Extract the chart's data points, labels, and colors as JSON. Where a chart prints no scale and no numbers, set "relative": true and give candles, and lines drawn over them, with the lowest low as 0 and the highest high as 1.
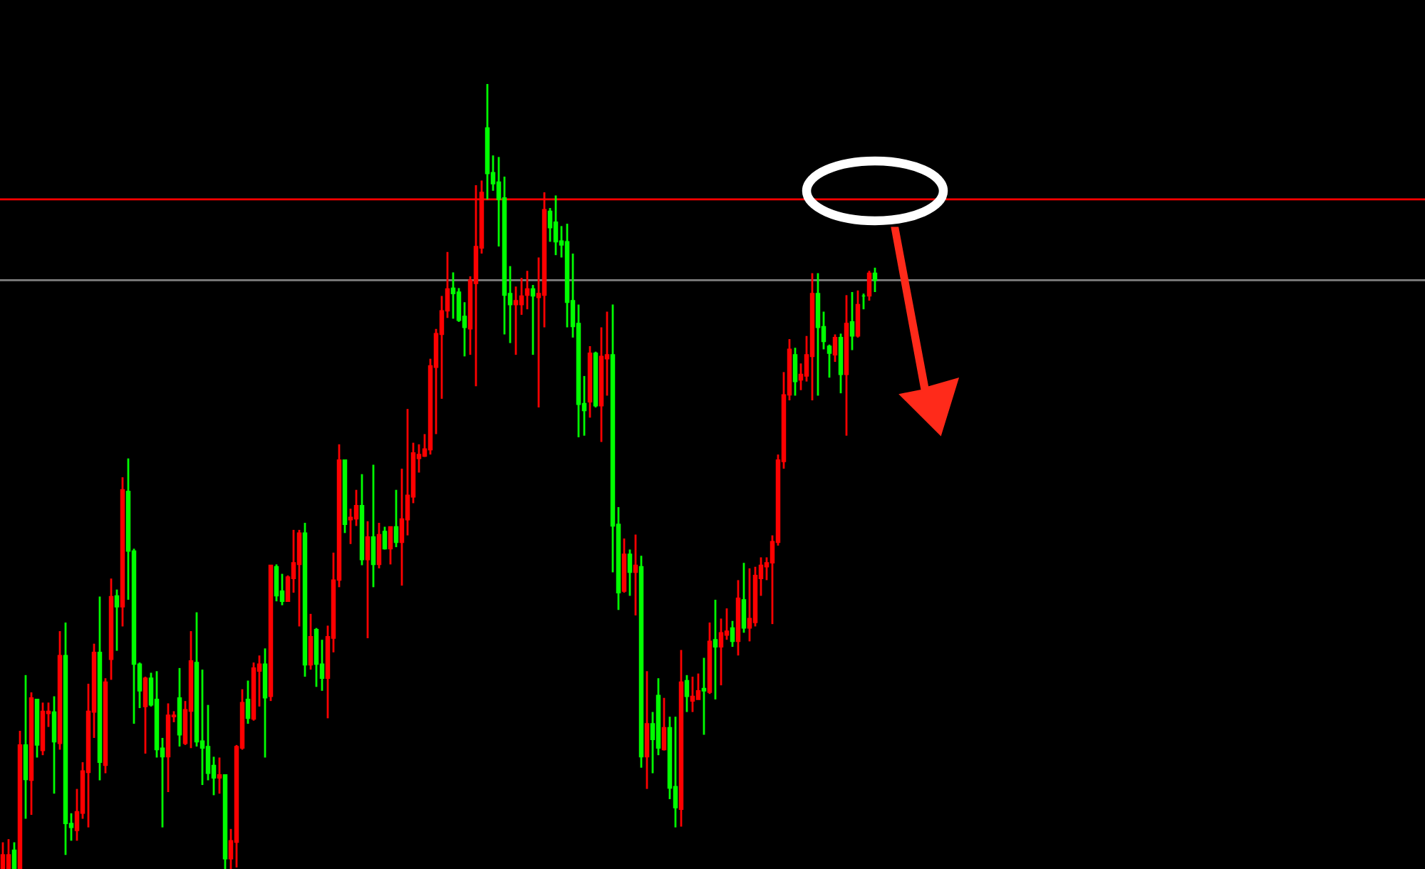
{
  "chart_data": {
    "type": "candlestick",
    "relative": true,
    "categories": [
      null,
      null,
      null,
      null,
      null,
      null,
      null,
      null,
      null,
      null,
      null,
      null,
      null,
      null,
      null,
      null,
      null,
      null,
      null,
      null,
      null,
      null,
      null,
      null,
      null,
      null,
      null,
      null,
      null,
      null,
      null,
      null,
      null,
      null,
      null,
      null,
      null,
      null,
      null,
      null,
      null,
      null,
      null,
      null,
      null,
      null,
      null,
      null,
      null,
      null,
      null,
      null,
      null,
      null,
      null,
      null,
      null,
      null,
      null,
      null,
      null,
      null,
      null,
      null,
      null,
      null,
      null,
      null,
      null,
      null,
      null,
      null,
      null,
      null,
      null,
      null,
      null,
      null,
      null,
      null,
      null,
      null,
      null,
      null,
      null,
      null,
      null,
      null,
      null,
      null,
      null,
      null,
      null,
      null,
      null,
      null,
      null,
      null,
      null,
      null,
      null,
      null,
      null,
      null,
      null,
      null,
      null,
      null,
      null,
      null,
      null,
      null,
      null,
      null,
      null,
      null,
      null,
      null,
      null,
      null,
      null,
      null,
      null,
      null,
      null,
      null,
      null,
      null,
      null,
      null,
      null,
      null,
      null,
      null,
      null,
      null,
      null,
      null,
      null,
      null,
      null,
      null,
      null,
      null,
      null,
      null,
      null,
      null,
      null,
      null,
      null,
      null,
      null,
      null
    ],
    "ohlc": [
      [
        0,
        0.034,
        0,
        0.018
      ],
      [
        0,
        0.038,
        0,
        0.018
      ],
      [
        0.024,
        0.034,
        0,
        0
      ],
      [
        0,
        0.176,
        0,
        0.158
      ],
      [
        0.158,
        0.247,
        0.064,
        0.114
      ],
      [
        0.113,
        0.225,
        0.069,
        0.218
      ],
      [
        0.216,
        0.216,
        0.142,
        0.158
      ],
      [
        0.151,
        0.212,
        0.145,
        0.201
      ],
      [
        0.198,
        0.212,
        0.181,
        0.201
      ],
      [
        0.2,
        0.22,
        0.096,
        0.162
      ],
      [
        0.16,
        0.303,
        0.152,
        0.272
      ],
      [
        0.272,
        0.314,
        0.018,
        0.058
      ],
      [
        0.058,
        0.071,
        0.036,
        0.053
      ],
      [
        0.049,
        0.102,
        0.036,
        0.073
      ],
      [
        0.071,
        0.136,
        0.064,
        0.125
      ],
      [
        0.123,
        0.236,
        0.053,
        0.201
      ],
      [
        0.2,
        0.287,
        0.167,
        0.276
      ],
      [
        0.276,
        0.347,
        0.113,
        0.136
      ],
      [
        0.132,
        0.243,
        0.122,
        0.238
      ],
      [
        0.267,
        0.37,
        0.241,
        0.347
      ],
      [
        0.348,
        0.356,
        0.278,
        0.334
      ],
      [
        0.334,
        0.499,
        0.309,
        0.483
      ],
      [
        0.481,
        0.523,
        0.343,
        0.405
      ],
      [
        0.405,
        0.408,
        0.185,
        0.261
      ],
      [
        0.261,
        0.263,
        0.205,
        0.227
      ],
      [
        0.207,
        0.245,
        0.147,
        0.243
      ],
      [
        0.243,
        0.25,
        0.207,
        0.209
      ],
      [
        0.216,
        0.252,
        0.142,
        0.152
      ],
      [
        0.154,
        0.167,
        0.053,
        0.143
      ],
      [
        0.143,
        0.211,
        0.098,
        0.196
      ],
      [
        0.194,
        0.201,
        0.187,
        0.196
      ],
      [
        0.218,
        0.256,
        0.156,
        0.171
      ],
      [
        0.16,
        0.214,
        0.158,
        0.203
      ],
      [
        0.201,
        0.303,
        0.154,
        0.265
      ],
      [
        0.263,
        0.327,
        0.156,
        0.162
      ],
      [
        0.163,
        0.254,
        0.107,
        0.154
      ],
      [
        0.156,
        0.209,
        0.113,
        0.122
      ],
      [
        0.132,
        0.143,
        0.094,
        0.116
      ],
      [
        0.116,
        0.142,
        0.096,
        0.12
      ],
      [
        0.12,
        0.12,
        0,
        0.013
      ],
      [
        0.013,
        0.051,
        0,
        0.036
      ],
      [
        0.034,
        0.158,
        0.002,
        0.156
      ],
      [
        0.154,
        0.229,
        0.152,
        0.212
      ],
      [
        0.216,
        0.24,
        0.185,
        0.192
      ],
      [
        0.191,
        0.263,
        0.189,
        0.256
      ],
      [
        0.252,
        0.272,
        0.207,
        0.261
      ],
      [
        0.261,
        0.281,
        0.142,
        0.218
      ],
      [
        0.22,
        0.387,
        0.214,
        0.387
      ],
      [
        0.385,
        0.388,
        0.341,
        0.348
      ],
      [
        0.354,
        0.376,
        0.336,
        0.341
      ],
      [
        0.341,
        0.374,
        0.341,
        0.372
      ],
      [
        0.37,
        0.432,
        0.352,
        0.39
      ],
      [
        0.388,
        0.432,
        0.309,
        0.428
      ],
      [
        0.428,
        0.441,
        0.245,
        0.26
      ],
      [
        0.26,
        0.325,
        0.254,
        0.296
      ],
      [
        0.305,
        0.307,
        0.232,
        0.261
      ],
      [
        0.261,
        0.292,
        0.227,
        0.243
      ],
      [
        0.243,
        0.31,
        0.192,
        0.296
      ],
      [
        0.294,
        0.403,
        0.276,
        0.368
      ],
      [
        0.368,
        0.541,
        0.359,
        0.521
      ],
      [
        0.521,
        0.521,
        0.428,
        0.439
      ],
      [
        0.445,
        0.459,
        0.414,
        0.448
      ],
      [
        0.446,
        0.483,
        0.437,
        0.463
      ],
      [
        0.463,
        0.503,
        0.387,
        0.394
      ],
      [
        0.394,
        0.443,
        0.294,
        0.423
      ],
      [
        0.423,
        0.515,
        0.359,
        0.388
      ],
      [
        0.388,
        0.441,
        0.383,
        0.426
      ],
      [
        0.43,
        0.436,
        0.407,
        0.408
      ],
      [
        0.408,
        0.436,
        0.388,
        0.436
      ],
      [
        0.436,
        0.483,
        0.41,
        0.416
      ],
      [
        0.416,
        0.51,
        0.361,
        0.446
      ],
      [
        0.445,
        0.586,
        0.425,
        0.476
      ],
      [
        0.474,
        0.543,
        0.466,
        0.53
      ],
      [
        0.523,
        0.541,
        0.505,
        0.528
      ],
      [
        0.526,
        0.554,
        0.525,
        0.535
      ],
      [
        0.534,
        0.65,
        0.528,
        0.641
      ],
      [
        0.639,
        0.688,
        0.554,
        0.682
      ],
      [
        0.681,
        0.73,
        0.599,
        0.711
      ],
      [
        0.711,
        0.786,
        0.702,
        0.739
      ],
      [
        0.74,
        0.76,
        0.701,
        0.733
      ],
      [
        0.735,
        0.74,
        0.697,
        0.699
      ],
      [
        0.704,
        0.722,
        0.653,
        0.69
      ],
      [
        0.688,
        0.755,
        0.655,
        0.75
      ],
      [
        0.746,
        0.871,
        0.615,
        0.793
      ],
      [
        0.791,
        0.877,
        0.784,
        0.862
      ],
      [
        0.944,
        1.0,
        0.853,
        0.886
      ],
      [
        0.887,
        0.909,
        0.864,
        0.873
      ],
      [
        0.875,
        0.907,
        0.793,
        0.853
      ],
      [
        0.855,
        0.882,
        0.681,
        0.731
      ],
      [
        0.733,
        0.768,
        0.67,
        0.719
      ],
      [
        0.719,
        0.742,
        0.655,
        0.724
      ],
      [
        0.719,
        0.753,
        0.706,
        0.73
      ],
      [
        0.731,
        0.762,
        0.713,
        0.739
      ],
      [
        0.739,
        0.744,
        0.655,
        0.73
      ],
      [
        0.728,
        0.779,
        0.588,
        0.733
      ],
      [
        0.731,
        0.862,
        0.69,
        0.84
      ],
      [
        0.838,
        0.842,
        0.799,
        0.817
      ],
      [
        0.824,
        0.858,
        0.782,
        0.799
      ],
      [
        0.8,
        0.819,
        0.779,
        0.795
      ],
      [
        0.799,
        0.822,
        0.69,
        0.722
      ],
      [
        0.724,
        0.784,
        0.677,
        0.691
      ],
      [
        0.695,
        0.719,
        0.55,
        0.592
      ],
      [
        0.593,
        0.628,
        0.552,
        0.584
      ],
      [
        0.595,
        0.666,
        0.575,
        0.657
      ],
      [
        0.657,
        0.659,
        0.588,
        0.59
      ],
      [
        0.59,
        0.69,
        0.544,
        0.653
      ],
      [
        0.65,
        0.71,
        0.603,
        0.655
      ],
      [
        0.655,
        0.719,
        0.378,
        0.437
      ],
      [
        0.439,
        0.461,
        0.33,
        0.352
      ],
      [
        0.354,
        0.421,
        0.352,
        0.401
      ],
      [
        0.401,
        0.407,
        0.348,
        0.378
      ],
      [
        0.378,
        0.426,
        0.323,
        0.387
      ],
      [
        0.385,
        0.399,
        0.129,
        0.143
      ],
      [
        0.143,
        0.252,
        0.102,
        0.185
      ],
      [
        0.185,
        0.2,
        0.122,
        0.165
      ],
      [
        0.221,
        0.243,
        0.145,
        0.154
      ],
      [
        0.152,
        0.218,
        0.151,
        0.18
      ],
      [
        0.18,
        0.194,
        0.089,
        0.103
      ],
      [
        0.105,
        0.194,
        0.053,
        0.078
      ],
      [
        0.076,
        0.279,
        0.054,
        0.238
      ],
      [
        0.24,
        0.247,
        0.2,
        0.22
      ],
      [
        0.214,
        0.245,
        0.2,
        0.22
      ],
      [
        0.216,
        0.249,
        0.216,
        0.227
      ],
      [
        0.23,
        0.269,
        0.171,
        0.227
      ],
      [
        0.225,
        0.314,
        0.223,
        0.29
      ],
      [
        0.292,
        0.343,
        0.216,
        0.283
      ],
      [
        0.283,
        0.319,
        0.234,
        0.301
      ],
      [
        0.298,
        0.332,
        0.292,
        0.303
      ],
      [
        0.307,
        0.316,
        0.283,
        0.29
      ],
      [
        0.29,
        0.368,
        0.272,
        0.345
      ],
      [
        0.343,
        0.39,
        0.301,
        0.307
      ],
      [
        0.307,
        0.383,
        0.29,
        0.319
      ],
      [
        0.314,
        0.385,
        0.309,
        0.374
      ],
      [
        0.37,
        0.397,
        0.348,
        0.387
      ],
      [
        0.385,
        0.397,
        0.368,
        0.39
      ],
      [
        0.39,
        0.425,
        0.312,
        0.417
      ],
      [
        0.416,
        0.528,
        0.412,
        0.521
      ],
      [
        0.519,
        0.633,
        0.51,
        0.604
      ],
      [
        0.604,
        0.675,
        0.597,
        0.662
      ],
      [
        0.655,
        0.664,
        0.603,
        0.621
      ],
      [
        0.623,
        0.644,
        0.61,
        0.63
      ],
      [
        0.628,
        0.679,
        0.621,
        0.655
      ],
      [
        0.653,
        0.759,
        0.597,
        0.733
      ],
      [
        0.733,
        0.759,
        0.603,
        0.69
      ],
      [
        0.691,
        0.71,
        0.662,
        0.672
      ],
      [
        0.666,
        0.668,
        0.626,
        0.657
      ],
      [
        0.655,
        0.681,
        0.646,
        0.677
      ],
      [
        0.677,
        0.682,
        0.606,
        0.63
      ],
      [
        0.63,
        0.731,
        0.552,
        0.695
      ],
      [
        0.697,
        0.735,
        0.661,
        0.679
      ],
      [
        0.679,
        0.737,
        0.677,
        0.719
      ],
      [
        0.73,
        0.733,
        0.713,
        0.73
      ],
      [
        0.73,
        0.762,
        0.724,
        0.759
      ],
      [
        0.759,
        0.766,
        0.735,
        0.75
      ]
    ],
    "colors": [
      "#ff0000",
      "#ff0000",
      "#00ff00",
      "#ff0000",
      "#00ff00",
      "#ff0000",
      "#00ff00",
      "#ff0000",
      "#ff0000",
      "#00ff00",
      "#ff0000",
      "#00ff00",
      "#00ff00",
      "#ff0000",
      "#ff0000",
      "#ff0000",
      "#ff0000",
      "#00ff00",
      "#ff0000",
      "#ff0000",
      "#00ff00",
      "#ff0000",
      "#00ff00",
      "#00ff00",
      "#00ff00",
      "#ff0000",
      "#00ff00",
      "#00ff00",
      "#00ff00",
      "#ff0000",
      "#ff0000",
      "#00ff00",
      "#ff0000",
      "#ff0000",
      "#00ff00",
      "#00ff00",
      "#00ff00",
      "#00ff00",
      "#ff0000",
      "#00ff00",
      "#ff0000",
      "#ff0000",
      "#ff0000",
      "#00ff00",
      "#ff0000",
      "#ff0000",
      "#00ff00",
      "#ff0000",
      "#00ff00",
      "#00ff00",
      "#ff0000",
      "#ff0000",
      "#ff0000",
      "#00ff00",
      "#ff0000",
      "#00ff00",
      "#00ff00",
      "#ff0000",
      "#ff0000",
      "#ff0000",
      "#00ff00",
      "#ff0000",
      "#ff0000",
      "#00ff00",
      "#ff0000",
      "#00ff00",
      "#ff0000",
      "#00ff00",
      "#ff0000",
      "#00ff00",
      "#ff0000",
      "#ff0000",
      "#ff0000",
      "#ff0000",
      "#ff0000",
      "#ff0000",
      "#ff0000",
      "#ff0000",
      "#ff0000",
      "#00ff00",
      "#00ff00",
      "#00ff00",
      "#ff0000",
      "#ff0000",
      "#ff0000",
      "#00ff00",
      "#00ff00",
      "#00ff00",
      "#00ff00",
      "#00ff00",
      "#ff0000",
      "#ff0000",
      "#ff0000",
      "#00ff00",
      "#ff0000",
      "#ff0000",
      "#00ff00",
      "#00ff00",
      "#00ff00",
      "#00ff00",
      "#00ff00",
      "#00ff00",
      "#00ff00",
      "#ff0000",
      "#00ff00",
      "#ff0000",
      "#ff0000",
      "#00ff00",
      "#00ff00",
      "#ff0000",
      "#00ff00",
      "#ff0000",
      "#00ff00",
      "#ff0000",
      "#00ff00",
      "#00ff00",
      "#ff0000",
      "#00ff00",
      "#00ff00",
      "#ff0000",
      "#00ff00",
      "#ff0000",
      "#ff0000",
      "#00ff00",
      "#ff0000",
      "#00ff00",
      "#ff0000",
      "#ff0000",
      "#00ff00",
      "#ff0000",
      "#00ff00",
      "#ff0000",
      "#ff0000",
      "#ff0000",
      "#ff0000",
      "#ff0000",
      "#ff0000",
      "#ff0000",
      "#ff0000",
      "#00ff00",
      "#ff0000",
      "#ff0000",
      "#ff0000",
      "#00ff00",
      "#00ff00",
      "#00ff00",
      "#ff0000",
      "#00ff00",
      "#ff0000",
      "#00ff00",
      "#ff0000",
      "#00ff00",
      "#ff0000",
      "#00ff00"
    ],
    "ref_lines": [
      {
        "axis": "y",
        "value": 0.853,
        "color": "#ff0000",
        "line_style": "solid"
      },
      {
        "axis": "y",
        "value": 0.75,
        "color": "#808080",
        "line_style": "solid"
      }
    ]
  }
}
